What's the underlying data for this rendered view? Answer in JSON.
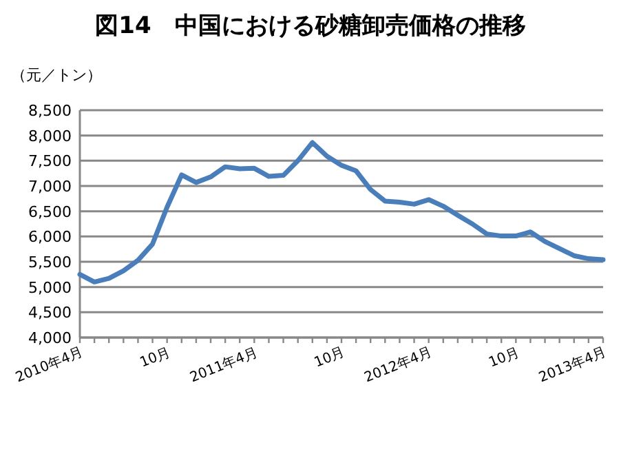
{
  "chart_data": {
    "type": "line",
    "title": "図14　中国における砂糖卸売価格の推移",
    "ylabel": "（元／トン）",
    "categories": [
      "2010年4月",
      null,
      null,
      null,
      null,
      null,
      "10月",
      null,
      null,
      null,
      null,
      null,
      "2011年4月",
      null,
      null,
      null,
      null,
      null,
      "10月",
      null,
      null,
      null,
      null,
      null,
      "2012年4月",
      null,
      null,
      null,
      null,
      null,
      "10月",
      null,
      null,
      null,
      null,
      null,
      "2013年4月"
    ],
    "series": [
      {
        "color": "#4a7ebb",
        "values": [
          5250,
          5100,
          5170,
          5320,
          5530,
          5850,
          6580,
          7220,
          7070,
          7180,
          7380,
          7340,
          7350,
          7190,
          7210,
          7500,
          7860,
          7590,
          7410,
          7300,
          6930,
          6700,
          6680,
          6640,
          6730,
          6600,
          6420,
          6250,
          6050,
          6010,
          6010,
          6090,
          5900,
          5760,
          5620,
          5560,
          5540
        ]
      }
    ],
    "ylim": [
      4000,
      8500
    ],
    "yticks": [
      {
        "value": 4000,
        "label": "4,000"
      },
      {
        "value": 4500,
        "label": "4,500"
      },
      {
        "value": 5000,
        "label": "5,000"
      },
      {
        "value": 5500,
        "label": "5,500"
      },
      {
        "value": 6000,
        "label": "6,000"
      },
      {
        "value": 6500,
        "label": "6,500"
      },
      {
        "value": 7000,
        "label": "7,000"
      },
      {
        "value": 7500,
        "label": "7,500"
      },
      {
        "value": 8000,
        "label": "8,000"
      },
      {
        "value": 8500,
        "label": "8,500"
      }
    ],
    "grid": "y",
    "marker": "none",
    "line_style": "solid"
  }
}
